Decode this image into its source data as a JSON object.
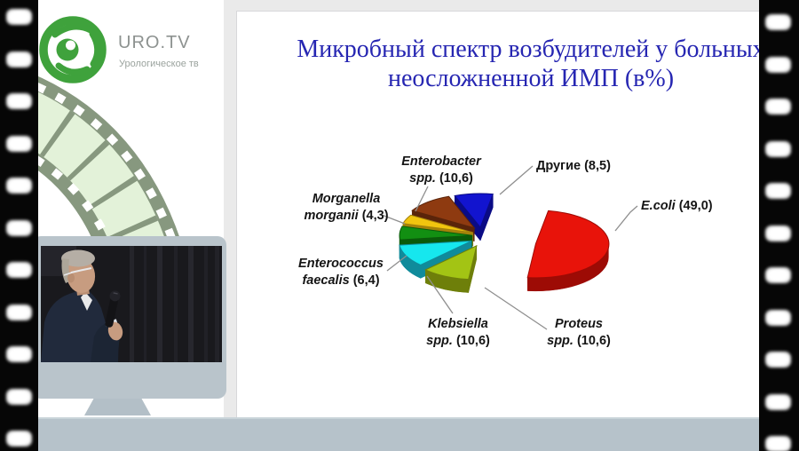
{
  "branding": {
    "logo_text": "URO.TV",
    "logo_subtitle": "Урологическое тв",
    "logo_color": "#3fa23c"
  },
  "slide": {
    "title_line1": "Микробный спектр возбудителей у больных",
    "title_line2": "неосложненной ИМП (в%)",
    "title_color": "#2626b2"
  },
  "chart_data": {
    "type": "pie",
    "style": "3d-exploded",
    "title": "Микробный спектр возбудителей у больных неосложненной ИМП (в%)",
    "unit": "%",
    "start_angle_deg": 10,
    "direction": "clockwise",
    "legend": "callout-labels",
    "slices": [
      {
        "label": "E.coli",
        "label_lines": [
          "E.coli"
        ],
        "value": 49.0,
        "value_text": "(49,0)",
        "italic": true,
        "color": "#e8130a",
        "side_color": "#9d0b05"
      },
      {
        "label": "Proteus spp.",
        "label_lines": [
          "Proteus",
          "spp."
        ],
        "value": 10.6,
        "value_text": "(10,6)",
        "italic": true,
        "color": "#a3c414",
        "side_color": "#6e7f0a"
      },
      {
        "label": "Klebsiella spp.",
        "label_lines": [
          "Klebsiella",
          "spp."
        ],
        "value": 10.6,
        "value_text": "(10,6)",
        "italic": true,
        "color": "#16e7ee",
        "side_color": "#108b9b"
      },
      {
        "label": "Enterococcus faecalis",
        "label_lines": [
          "Enterococcus",
          "faecalis"
        ],
        "value": 6.4,
        "value_text": "(6,4)",
        "italic": true,
        "color": "#128f12",
        "side_color": "#0a5a0a"
      },
      {
        "label": "Morganella morganii",
        "label_lines": [
          "Morganella",
          "morganii"
        ],
        "value": 4.3,
        "value_text": "(4,3)",
        "italic": true,
        "color": "#f1c50f",
        "side_color": "#a5830a"
      },
      {
        "label": "Enterobacter spp.",
        "label_lines": [
          "Enterobacter",
          "spp."
        ],
        "value": 10.6,
        "value_text": "(10,6)",
        "italic": true,
        "color": "#8e3a10",
        "side_color": "#5a240a"
      },
      {
        "label": "Другие",
        "label_lines": [
          "Другие"
        ],
        "value": 8.5,
        "value_text": "(8,5)",
        "italic": false,
        "color": "#1214cf",
        "side_color": "#0a0b85"
      }
    ]
  }
}
